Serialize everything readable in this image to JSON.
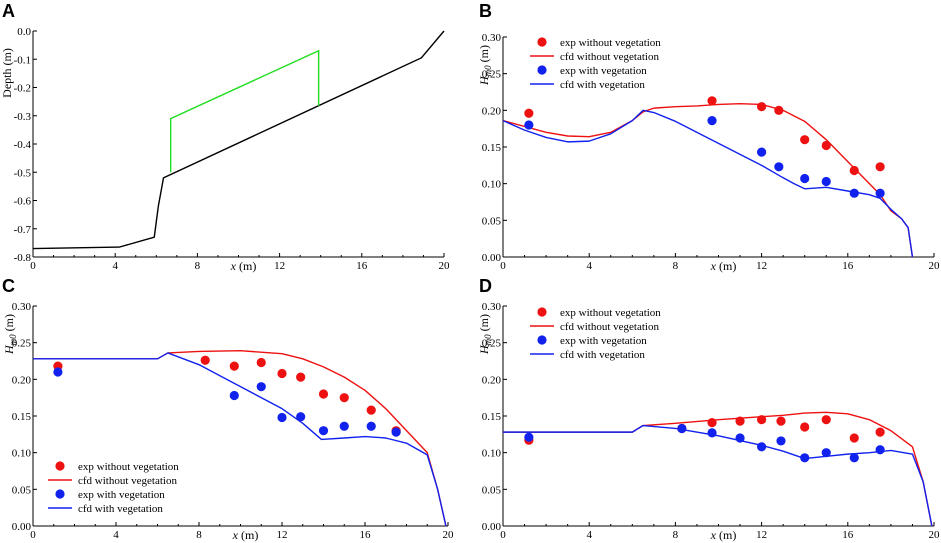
{
  "panels": [
    {
      "letter": "A",
      "type": "line",
      "xlabel_var": "x",
      "xlabel_unit": " (m)",
      "ylabel": "Depth (m)",
      "xlim": [
        0,
        20
      ],
      "ylim": [
        -0.8,
        0
      ],
      "xticks": [
        0,
        4,
        8,
        12,
        16,
        20
      ],
      "xtick_labels": [
        "0",
        "4",
        "8",
        "12",
        "16",
        "20"
      ],
      "yticks": [
        0,
        -0.1,
        -0.2,
        -0.3,
        -0.4,
        -0.5,
        -0.6,
        -0.7,
        -0.8
      ],
      "ytick_labels": [
        "0.0",
        "-0.1",
        "-0.2",
        "-0.3",
        "-0.4",
        "-0.5",
        "-0.6",
        "-0.7",
        "-0.8"
      ],
      "series": [
        {
          "name": "bathymetry",
          "color": "#000000",
          "x": [
            0,
            4.2,
            5.9,
            6.1,
            6.35,
            18.9,
            20
          ],
          "y": [
            -0.77,
            -0.765,
            -0.73,
            -0.62,
            -0.52,
            -0.095,
            0.0
          ]
        },
        {
          "name": "vegetation zone",
          "color": "#22dd22",
          "x": [
            6.7,
            6.7,
            13.9,
            13.9
          ],
          "y": [
            -0.5,
            -0.31,
            -0.07,
            -0.265
          ]
        }
      ]
    },
    {
      "letter": "B",
      "type": "line+scatter",
      "xlabel_var": "x",
      "xlabel_unit": " (m)",
      "ylabel_var": "H",
      "ylabel_sub": "m0",
      "ylabel_unit": " (m)",
      "xlim": [
        0,
        20
      ],
      "ylim": [
        0,
        0.3
      ],
      "xticks": [
        0,
        4,
        8,
        12,
        16,
        20
      ],
      "xtick_labels": [
        "0",
        "4",
        "8",
        "12",
        "16",
        "20"
      ],
      "yticks": [
        0,
        0.05,
        0.1,
        0.15,
        0.2,
        0.25,
        0.3
      ],
      "ytick_labels": [
        "0.00",
        "0.05",
        "0.10",
        "0.15",
        "0.20",
        "0.25",
        "0.30"
      ],
      "legend_position": "top-left",
      "legend": [
        {
          "label": "exp without vegetation",
          "kind": "dot",
          "color": "#ee1111"
        },
        {
          "label": "cfd without vegetation",
          "kind": "line",
          "color": "#ee1111"
        },
        {
          "label": "exp with vegetation",
          "kind": "dot",
          "color": "#1122ee"
        },
        {
          "label": "cfd with vegetation",
          "kind": "line",
          "color": "#1122ee"
        }
      ],
      "lines": [
        {
          "name": "cfd without vegetation",
          "color": "#ee1111",
          "x": [
            0,
            1,
            2,
            3,
            4,
            5,
            6,
            6.5,
            7,
            8,
            9,
            10,
            11,
            12,
            13,
            14,
            15,
            16,
            17,
            17.5,
            18,
            18.5,
            18.8,
            19
          ],
          "y": [
            0.186,
            0.178,
            0.17,
            0.165,
            0.164,
            0.17,
            0.186,
            0.198,
            0.203,
            0.205,
            0.206,
            0.208,
            0.209,
            0.208,
            0.2,
            0.185,
            0.16,
            0.13,
            0.1,
            0.085,
            0.063,
            0.052,
            0.04,
            0.0
          ]
        },
        {
          "name": "cfd with vegetation",
          "color": "#1122ee",
          "x": [
            0,
            1,
            2,
            3,
            4,
            5,
            6,
            6.5,
            7,
            8,
            9,
            10,
            11,
            12,
            13,
            13.5,
            14,
            15,
            16,
            17,
            17.5,
            18,
            18.5,
            18.8,
            19
          ],
          "y": [
            0.186,
            0.173,
            0.163,
            0.157,
            0.158,
            0.168,
            0.186,
            0.2,
            0.197,
            0.185,
            0.17,
            0.155,
            0.14,
            0.125,
            0.108,
            0.1,
            0.093,
            0.095,
            0.09,
            0.085,
            0.08,
            0.065,
            0.052,
            0.04,
            0.0
          ]
        }
      ],
      "points": [
        {
          "name": "exp without vegetation",
          "color": "#ee1111",
          "x": [
            1.2,
            9.7,
            12.0,
            12.8,
            14.0,
            15.0,
            16.3,
            17.5
          ],
          "y": [
            0.196,
            0.213,
            0.205,
            0.2,
            0.16,
            0.152,
            0.118,
            0.123
          ]
        },
        {
          "name": "exp with vegetation",
          "color": "#1122ee",
          "x": [
            1.2,
            9.7,
            12.0,
            12.8,
            14.0,
            15.0,
            16.3,
            17.5
          ],
          "y": [
            0.18,
            0.186,
            0.143,
            0.123,
            0.107,
            0.103,
            0.087,
            0.087
          ]
        }
      ]
    },
    {
      "letter": "C",
      "type": "line+scatter",
      "xlabel_var": "x",
      "xlabel_unit": " (m)",
      "ylabel_var": "H",
      "ylabel_sub": "m0",
      "ylabel_unit": " (m)",
      "xlim": [
        0,
        20
      ],
      "ylim": [
        0,
        0.3
      ],
      "xticks": [
        0,
        4,
        8,
        12,
        16,
        20
      ],
      "xtick_labels": [
        "0",
        "4",
        "8",
        "12",
        "16",
        "20"
      ],
      "yticks": [
        0,
        0.05,
        0.1,
        0.15,
        0.2,
        0.25,
        0.3
      ],
      "ytick_labels": [
        "0.00",
        "0.05",
        "0.10",
        "0.15",
        "0.20",
        "0.25",
        "0.30"
      ],
      "legend_position": "bottom-left",
      "legend": [
        {
          "label": "exp without vegetation",
          "kind": "dot",
          "color": "#ee1111"
        },
        {
          "label": "cfd without vegetation",
          "kind": "line",
          "color": "#ee1111"
        },
        {
          "label": "exp with vegetation",
          "kind": "dot",
          "color": "#1122ee"
        },
        {
          "label": "cfd with vegetation",
          "kind": "line",
          "color": "#1122ee"
        }
      ],
      "lines": [
        {
          "name": "cfd without vegetation",
          "color": "#ee1111",
          "x": [
            0,
            6,
            6.5,
            8,
            10,
            12,
            13,
            14,
            15,
            16,
            17,
            18,
            19,
            19.5,
            19.9
          ],
          "y": [
            0.228,
            0.228,
            0.236,
            0.238,
            0.239,
            0.235,
            0.228,
            0.217,
            0.203,
            0.185,
            0.16,
            0.13,
            0.1,
            0.05,
            0.0
          ]
        },
        {
          "name": "cfd with vegetation",
          "color": "#1122ee",
          "x": [
            0,
            6,
            6.5,
            8,
            10,
            12,
            13,
            13.9,
            15,
            16,
            17,
            18,
            19,
            19.5,
            19.9
          ],
          "y": [
            0.228,
            0.228,
            0.236,
            0.22,
            0.19,
            0.16,
            0.14,
            0.118,
            0.12,
            0.122,
            0.12,
            0.113,
            0.097,
            0.05,
            0.0
          ]
        }
      ],
      "points": [
        {
          "name": "exp without vegetation",
          "color": "#ee1111",
          "x": [
            1.2,
            8.3,
            9.7,
            11.0,
            12.0,
            12.9,
            14.0,
            15.0,
            16.3,
            17.5
          ],
          "y": [
            0.218,
            0.226,
            0.218,
            0.223,
            0.208,
            0.203,
            0.18,
            0.175,
            0.158,
            0.13
          ]
        },
        {
          "name": "exp with vegetation",
          "color": "#1122ee",
          "x": [
            1.2,
            9.7,
            11.0,
            12.0,
            12.9,
            14.0,
            15.0,
            16.3,
            17.5
          ],
          "y": [
            0.21,
            0.178,
            0.19,
            0.148,
            0.149,
            0.13,
            0.136,
            0.136,
            0.128
          ]
        }
      ]
    },
    {
      "letter": "D",
      "type": "line+scatter",
      "xlabel_var": "x",
      "xlabel_unit": " (m)",
      "ylabel_var": "H",
      "ylabel_sub": "m0",
      "ylabel_unit": " (m)",
      "xlim": [
        0,
        20
      ],
      "ylim": [
        0,
        0.3
      ],
      "xticks": [
        0,
        4,
        8,
        12,
        16,
        20
      ],
      "xtick_labels": [
        "0",
        "4",
        "8",
        "12",
        "16",
        "20"
      ],
      "yticks": [
        0,
        0.05,
        0.1,
        0.15,
        0.2,
        0.25,
        0.3
      ],
      "ytick_labels": [
        "0.00",
        "0.05",
        "0.10",
        "0.15",
        "0.20",
        "0.25",
        "0.30"
      ],
      "legend_position": "top-left",
      "legend": [
        {
          "label": "exp without vegetation",
          "kind": "dot",
          "color": "#ee1111"
        },
        {
          "label": "cfd without vegetation",
          "kind": "line",
          "color": "#ee1111"
        },
        {
          "label": "exp with vegetation",
          "kind": "dot",
          "color": "#1122ee"
        },
        {
          "label": "cfd with vegetation",
          "kind": "line",
          "color": "#1122ee"
        }
      ],
      "lines": [
        {
          "name": "cfd without vegetation",
          "color": "#ee1111",
          "x": [
            0,
            6,
            6.5,
            8,
            10,
            12,
            13,
            14,
            15,
            16,
            17,
            18,
            19,
            19.5,
            19.9
          ],
          "y": [
            0.128,
            0.128,
            0.137,
            0.14,
            0.145,
            0.149,
            0.151,
            0.154,
            0.155,
            0.153,
            0.145,
            0.13,
            0.108,
            0.06,
            0.0
          ]
        },
        {
          "name": "cfd with vegetation",
          "color": "#1122ee",
          "x": [
            0,
            6,
            6.5,
            8,
            10,
            12,
            13,
            14,
            15,
            16,
            17,
            18,
            19,
            19.5,
            19.9
          ],
          "y": [
            0.128,
            0.128,
            0.137,
            0.133,
            0.123,
            0.11,
            0.102,
            0.092,
            0.095,
            0.098,
            0.1,
            0.103,
            0.098,
            0.06,
            0.0
          ]
        }
      ],
      "points": [
        {
          "name": "exp without vegetation",
          "color": "#ee1111",
          "x": [
            1.2,
            8.3,
            9.7,
            11.0,
            12.0,
            12.9,
            14.0,
            15.0,
            16.3,
            17.5
          ],
          "y": [
            0.117,
            0.133,
            0.141,
            0.143,
            0.145,
            0.143,
            0.135,
            0.145,
            0.12,
            0.128
          ]
        },
        {
          "name": "exp with vegetation",
          "color": "#1122ee",
          "x": [
            1.2,
            8.3,
            9.7,
            11.0,
            12.0,
            12.9,
            14.0,
            15.0,
            16.3,
            17.5
          ],
          "y": [
            0.121,
            0.133,
            0.127,
            0.12,
            0.108,
            0.116,
            0.093,
            0.1,
            0.093,
            0.104
          ]
        }
      ]
    }
  ],
  "chart_data": [
    {
      "type": "line",
      "title": "A",
      "xlabel": "x (m)",
      "ylabel": "Depth (m)",
      "xlim": [
        0,
        20
      ],
      "ylim": [
        -0.8,
        0
      ],
      "series": [
        {
          "name": "bathymetry",
          "x": [
            0,
            4.2,
            5.9,
            6.1,
            6.35,
            18.9,
            20
          ],
          "values": [
            -0.77,
            -0.765,
            -0.73,
            -0.62,
            -0.52,
            -0.095,
            0.0
          ]
        },
        {
          "name": "vegetation zone",
          "x": [
            6.7,
            6.7,
            13.9,
            13.9
          ],
          "values": [
            -0.5,
            -0.31,
            -0.07,
            -0.265
          ]
        }
      ]
    },
    {
      "type": "scatter",
      "title": "B",
      "xlabel": "x (m)",
      "ylabel": "Hm0 (m)",
      "xlim": [
        0,
        20
      ],
      "ylim": [
        0,
        0.3
      ],
      "series": [
        {
          "name": "exp without vegetation",
          "x": [
            1.2,
            9.7,
            12.0,
            12.8,
            14.0,
            15.0,
            16.3,
            17.5
          ],
          "values": [
            0.196,
            0.213,
            0.205,
            0.2,
            0.16,
            0.152,
            0.118,
            0.123
          ]
        },
        {
          "name": "exp with vegetation",
          "x": [
            1.2,
            9.7,
            12.0,
            12.8,
            14.0,
            15.0,
            16.3,
            17.5
          ],
          "values": [
            0.18,
            0.186,
            0.143,
            0.123,
            0.107,
            0.103,
            0.087,
            0.087
          ]
        },
        {
          "name": "cfd without vegetation",
          "x": [
            0,
            4,
            7,
            11,
            14,
            16,
            18.5,
            19
          ],
          "values": [
            0.186,
            0.164,
            0.203,
            0.209,
            0.185,
            0.13,
            0.052,
            0.0
          ]
        },
        {
          "name": "cfd with vegetation",
          "x": [
            0,
            3,
            6.5,
            10,
            14,
            16,
            18.5,
            19
          ],
          "values": [
            0.186,
            0.157,
            0.2,
            0.155,
            0.093,
            0.09,
            0.052,
            0.0
          ]
        }
      ]
    },
    {
      "type": "scatter",
      "title": "C",
      "xlabel": "x (m)",
      "ylabel": "Hm0 (m)",
      "xlim": [
        0,
        20
      ],
      "ylim": [
        0,
        0.3
      ],
      "series": [
        {
          "name": "exp without vegetation",
          "x": [
            1.2,
            8.3,
            9.7,
            11.0,
            12.0,
            12.9,
            14.0,
            15.0,
            16.3,
            17.5
          ],
          "values": [
            0.218,
            0.226,
            0.218,
            0.223,
            0.208,
            0.203,
            0.18,
            0.175,
            0.158,
            0.13
          ]
        },
        {
          "name": "exp with vegetation",
          "x": [
            1.2,
            9.7,
            11.0,
            12.0,
            12.9,
            14.0,
            15.0,
            16.3,
            17.5
          ],
          "values": [
            0.21,
            0.178,
            0.19,
            0.148,
            0.149,
            0.13,
            0.136,
            0.136,
            0.128
          ]
        },
        {
          "name": "cfd without vegetation",
          "x": [
            0,
            6,
            10,
            14,
            18,
            19,
            19.9
          ],
          "values": [
            0.228,
            0.228,
            0.239,
            0.217,
            0.13,
            0.1,
            0.0
          ]
        },
        {
          "name": "cfd with vegetation",
          "x": [
            0,
            6,
            10,
            13.9,
            16,
            19,
            19.9
          ],
          "values": [
            0.228,
            0.228,
            0.19,
            0.118,
            0.122,
            0.097,
            0.0
          ]
        }
      ]
    },
    {
      "type": "scatter",
      "title": "D",
      "xlabel": "x (m)",
      "ylabel": "Hm0 (m)",
      "xlim": [
        0,
        20
      ],
      "ylim": [
        0,
        0.3
      ],
      "series": [
        {
          "name": "exp without vegetation",
          "x": [
            1.2,
            8.3,
            9.7,
            11.0,
            12.0,
            12.9,
            14.0,
            15.0,
            16.3,
            17.5
          ],
          "values": [
            0.117,
            0.133,
            0.141,
            0.143,
            0.145,
            0.143,
            0.135,
            0.145,
            0.12,
            0.128
          ]
        },
        {
          "name": "exp with vegetation",
          "x": [
            1.2,
            8.3,
            9.7,
            11.0,
            12.0,
            12.9,
            14.0,
            15.0,
            16.3,
            17.5
          ],
          "values": [
            0.121,
            0.133,
            0.127,
            0.12,
            0.108,
            0.116,
            0.093,
            0.1,
            0.093,
            0.104
          ]
        },
        {
          "name": "cfd without vegetation",
          "x": [
            0,
            6,
            10,
            15,
            18,
            19,
            19.9
          ],
          "values": [
            0.128,
            0.128,
            0.145,
            0.155,
            0.13,
            0.108,
            0.0
          ]
        },
        {
          "name": "cfd with vegetation",
          "x": [
            0,
            6,
            10,
            14,
            18,
            19,
            19.9
          ],
          "values": [
            0.128,
            0.128,
            0.123,
            0.092,
            0.103,
            0.098,
            0.0
          ]
        }
      ]
    }
  ]
}
